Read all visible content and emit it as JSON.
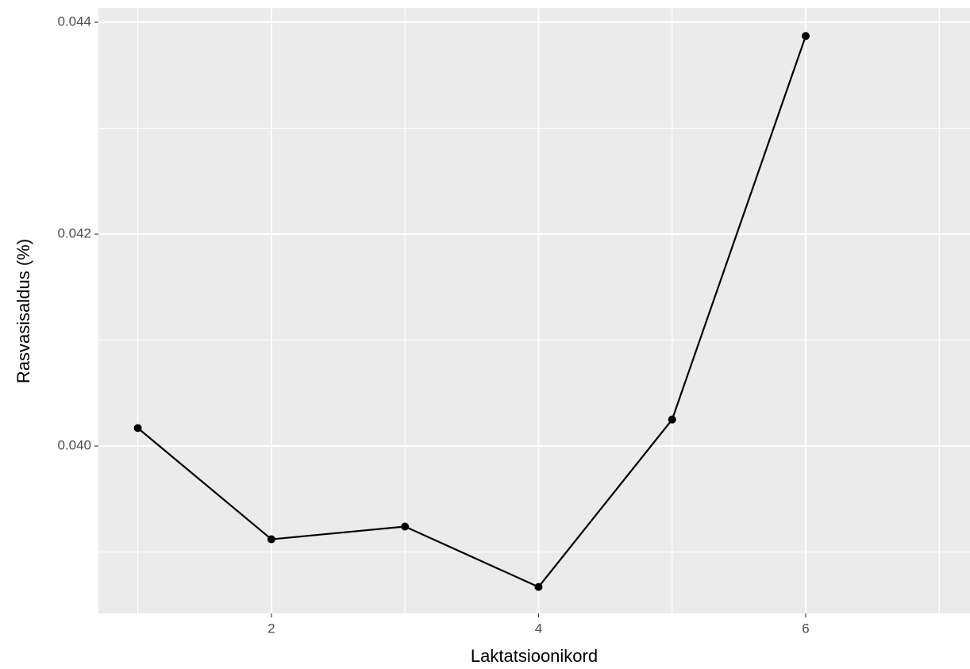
{
  "chart_data": {
    "type": "line",
    "x_label": "Laktatsioonikord",
    "y_label": "Rasvasisaldus (%)",
    "x": [
      1,
      2,
      3,
      4,
      5,
      6
    ],
    "series": [
      {
        "color": "#000000",
        "values": [
          0.04017,
          0.03912,
          0.03924,
          0.03867,
          0.04025,
          0.04387
        ]
      }
    ],
    "xlim": [
      0.705,
      7.23
    ],
    "ylim": [
      0.03842,
      0.044135
    ],
    "xticks": [
      2,
      4,
      6
    ],
    "yticks": [
      {
        "value": 0.04,
        "label": "0.040"
      },
      0.042,
      0.044
    ],
    "x_minor_grid": [
      1,
      3,
      5,
      7
    ],
    "y_minor_grid": [
      0.039,
      0.041,
      0.043
    ],
    "grid": true,
    "panel_color": "#ebebeb"
  }
}
